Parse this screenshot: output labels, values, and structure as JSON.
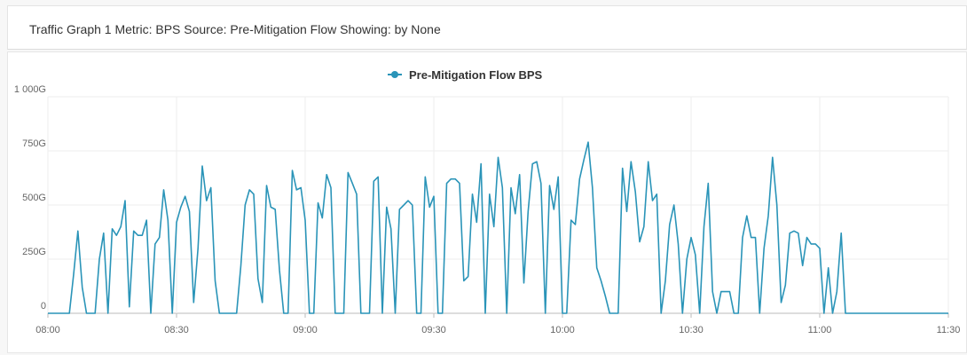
{
  "header": {
    "title": "Traffic Graph 1 Metric: BPS Source: Pre-Mitigation Flow Showing: by None"
  },
  "colors": {
    "series": "#2a94b8",
    "grid": "#eeeeee",
    "axis": "#bbbbbb"
  },
  "chart_data": {
    "type": "line",
    "grid": true,
    "legend_position": "top-center",
    "xlim": [
      "08:00",
      "11:30"
    ],
    "ylim": [
      0,
      1000
    ],
    "y_unit": "G",
    "yticks": [
      "0",
      "250G",
      "500G",
      "750G",
      "1 000G"
    ],
    "xticks": [
      "08:00",
      "08:30",
      "09:00",
      "09:30",
      "10:00",
      "10:30",
      "11:00",
      "11:30"
    ],
    "series": [
      {
        "name": "Pre-Mitigation Flow BPS",
        "points": [
          [
            "08:00",
            0
          ],
          [
            "08:04",
            0
          ],
          [
            "08:05",
            0
          ],
          [
            "08:06",
            180
          ],
          [
            "08:07",
            380
          ],
          [
            "08:08",
            120
          ],
          [
            "08:09",
            0
          ],
          [
            "08:11",
            0
          ],
          [
            "08:12",
            250
          ],
          [
            "08:13",
            370
          ],
          [
            "08:14",
            0
          ],
          [
            "08:15",
            390
          ],
          [
            "08:16",
            360
          ],
          [
            "08:17",
            400
          ],
          [
            "08:18",
            520
          ],
          [
            "08:19",
            30
          ],
          [
            "08:20",
            380
          ],
          [
            "08:21",
            360
          ],
          [
            "08:22",
            360
          ],
          [
            "08:23",
            430
          ],
          [
            "08:24",
            0
          ],
          [
            "08:25",
            320
          ],
          [
            "08:26",
            350
          ],
          [
            "08:27",
            570
          ],
          [
            "08:28",
            430
          ],
          [
            "08:29",
            0
          ],
          [
            "08:30",
            420
          ],
          [
            "08:31",
            490
          ],
          [
            "08:32",
            540
          ],
          [
            "08:33",
            470
          ],
          [
            "08:34",
            50
          ],
          [
            "08:35",
            300
          ],
          [
            "08:36",
            680
          ],
          [
            "08:37",
            520
          ],
          [
            "08:38",
            580
          ],
          [
            "08:39",
            150
          ],
          [
            "08:40",
            0
          ],
          [
            "08:44",
            0
          ],
          [
            "08:45",
            220
          ],
          [
            "08:46",
            500
          ],
          [
            "08:47",
            570
          ],
          [
            "08:48",
            550
          ],
          [
            "08:49",
            160
          ],
          [
            "08:50",
            50
          ],
          [
            "08:51",
            590
          ],
          [
            "08:52",
            490
          ],
          [
            "08:53",
            480
          ],
          [
            "08:54",
            200
          ],
          [
            "08:55",
            0
          ],
          [
            "08:56",
            0
          ],
          [
            "08:57",
            660
          ],
          [
            "08:58",
            570
          ],
          [
            "08:59",
            580
          ],
          [
            "09:00",
            430
          ],
          [
            "09:01",
            0
          ],
          [
            "09:02",
            0
          ],
          [
            "09:03",
            510
          ],
          [
            "09:04",
            440
          ],
          [
            "09:05",
            640
          ],
          [
            "09:06",
            580
          ],
          [
            "09:07",
            0
          ],
          [
            "09:08",
            0
          ],
          [
            "09:09",
            0
          ],
          [
            "09:10",
            650
          ],
          [
            "09:11",
            600
          ],
          [
            "09:12",
            550
          ],
          [
            "09:13",
            0
          ],
          [
            "09:14",
            0
          ],
          [
            "09:15",
            0
          ],
          [
            "09:16",
            610
          ],
          [
            "09:17",
            630
          ],
          [
            "09:18",
            0
          ],
          [
            "09:19",
            490
          ],
          [
            "09:20",
            390
          ],
          [
            "09:21",
            0
          ],
          [
            "09:22",
            480
          ],
          [
            "09:23",
            500
          ],
          [
            "09:24",
            520
          ],
          [
            "09:25",
            500
          ],
          [
            "09:26",
            0
          ],
          [
            "09:27",
            0
          ],
          [
            "09:28",
            630
          ],
          [
            "09:29",
            490
          ],
          [
            "09:30",
            540
          ],
          [
            "09:31",
            0
          ],
          [
            "09:32",
            0
          ],
          [
            "09:33",
            600
          ],
          [
            "09:34",
            620
          ],
          [
            "09:35",
            620
          ],
          [
            "09:36",
            600
          ],
          [
            "09:37",
            150
          ],
          [
            "09:38",
            170
          ],
          [
            "09:39",
            550
          ],
          [
            "09:40",
            420
          ],
          [
            "09:41",
            690
          ],
          [
            "09:42",
            0
          ],
          [
            "09:43",
            550
          ],
          [
            "09:44",
            400
          ],
          [
            "09:45",
            720
          ],
          [
            "09:46",
            580
          ],
          [
            "09:47",
            0
          ],
          [
            "09:48",
            580
          ],
          [
            "09:49",
            460
          ],
          [
            "09:50",
            640
          ],
          [
            "09:51",
            140
          ],
          [
            "09:52",
            470
          ],
          [
            "09:53",
            690
          ],
          [
            "09:54",
            700
          ],
          [
            "09:55",
            600
          ],
          [
            "09:56",
            0
          ],
          [
            "09:57",
            590
          ],
          [
            "09:58",
            480
          ],
          [
            "09:59",
            630
          ],
          [
            "10:00",
            0
          ],
          [
            "10:01",
            0
          ],
          [
            "10:02",
            430
          ],
          [
            "10:03",
            410
          ],
          [
            "10:04",
            620
          ],
          [
            "10:05",
            710
          ],
          [
            "10:06",
            790
          ],
          [
            "10:07",
            580
          ],
          [
            "10:08",
            210
          ],
          [
            "10:09",
            150
          ],
          [
            "10:10",
            80
          ],
          [
            "10:11",
            0
          ],
          [
            "10:12",
            0
          ],
          [
            "10:13",
            0
          ],
          [
            "10:14",
            670
          ],
          [
            "10:15",
            470
          ],
          [
            "10:16",
            700
          ],
          [
            "10:17",
            560
          ],
          [
            "10:18",
            330
          ],
          [
            "10:19",
            400
          ],
          [
            "10:20",
            700
          ],
          [
            "10:21",
            520
          ],
          [
            "10:22",
            550
          ],
          [
            "10:23",
            0
          ],
          [
            "10:24",
            150
          ],
          [
            "10:25",
            410
          ],
          [
            "10:26",
            500
          ],
          [
            "10:27",
            320
          ],
          [
            "10:28",
            0
          ],
          [
            "10:29",
            250
          ],
          [
            "10:30",
            350
          ],
          [
            "10:31",
            270
          ],
          [
            "10:32",
            0
          ],
          [
            "10:33",
            400
          ],
          [
            "10:34",
            600
          ],
          [
            "10:35",
            100
          ],
          [
            "10:36",
            0
          ],
          [
            "10:37",
            100
          ],
          [
            "10:38",
            100
          ],
          [
            "10:39",
            100
          ],
          [
            "10:40",
            0
          ],
          [
            "10:41",
            0
          ],
          [
            "10:42",
            350
          ],
          [
            "10:43",
            450
          ],
          [
            "10:44",
            350
          ],
          [
            "10:45",
            350
          ],
          [
            "10:46",
            0
          ],
          [
            "10:47",
            300
          ],
          [
            "10:48",
            450
          ],
          [
            "10:49",
            720
          ],
          [
            "10:50",
            500
          ],
          [
            "10:51",
            50
          ],
          [
            "10:52",
            130
          ],
          [
            "10:53",
            370
          ],
          [
            "10:54",
            380
          ],
          [
            "10:55",
            370
          ],
          [
            "10:56",
            220
          ],
          [
            "10:57",
            350
          ],
          [
            "10:58",
            320
          ],
          [
            "10:59",
            320
          ],
          [
            "11:00",
            300
          ],
          [
            "11:01",
            0
          ],
          [
            "11:02",
            210
          ],
          [
            "11:03",
            0
          ],
          [
            "11:04",
            100
          ],
          [
            "11:05",
            370
          ],
          [
            "11:06",
            0
          ],
          [
            "11:30",
            0
          ]
        ]
      }
    ]
  }
}
